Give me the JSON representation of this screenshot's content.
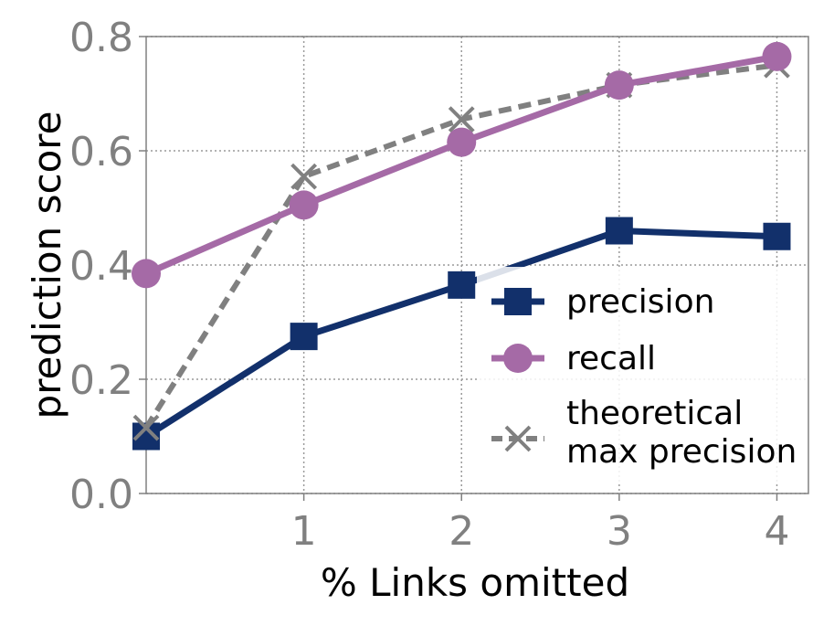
{
  "chart_data": {
    "type": "line",
    "title": "",
    "xlabel": "% Links omitted",
    "ylabel": "prediction score",
    "x": [
      0,
      1,
      2,
      3,
      4
    ],
    "xticks": [
      1,
      2,
      3,
      4
    ],
    "xtick_labels": [
      "1",
      "2",
      "3",
      "4"
    ],
    "yticks": [
      0.0,
      0.2,
      0.4,
      0.6,
      0.8
    ],
    "ytick_labels": [
      "0.0",
      "0.2",
      "0.4",
      "0.6",
      "0.8"
    ],
    "xlim": [
      0,
      4.2
    ],
    "ylim": [
      0,
      0.8
    ],
    "grid": true,
    "legend_position": "lower-right",
    "series": [
      {
        "name": "precision",
        "values": [
          0.1,
          0.275,
          0.365,
          0.46,
          0.45
        ],
        "color": "#12306b",
        "marker": "square",
        "line": "solid"
      },
      {
        "name": "recall",
        "values": [
          0.385,
          0.505,
          0.615,
          0.715,
          0.765
        ],
        "color": "#a56aa6",
        "marker": "circle",
        "line": "solid"
      },
      {
        "name": "theoretical max precision",
        "legend_lines": [
          "theoretical",
          "max precision"
        ],
        "values": [
          0.115,
          0.555,
          0.655,
          0.715,
          0.75
        ],
        "color": "#808080",
        "marker": "x",
        "line": "dashed"
      }
    ]
  }
}
